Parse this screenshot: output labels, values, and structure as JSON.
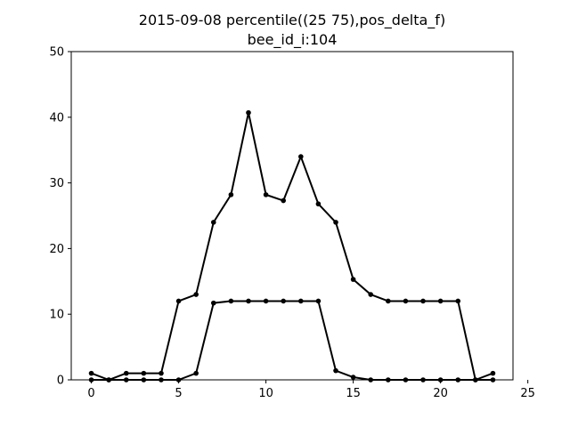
{
  "chart_data": {
    "type": "line",
    "title": "2015-09-08 percentile((25 75),pos_delta_f)",
    "subtitle": "bee_id_i:104",
    "xlabel": "",
    "ylabel": "",
    "xlim": [
      -1.15,
      24.15
    ],
    "ylim": [
      0,
      50
    ],
    "x_ticks": [
      0,
      5,
      10,
      15,
      20,
      25
    ],
    "y_ticks": [
      0,
      10,
      20,
      30,
      40,
      50
    ],
    "grid": false,
    "legend": "none",
    "x": [
      0,
      1,
      2,
      3,
      4,
      5,
      6,
      7,
      8,
      9,
      10,
      11,
      12,
      13,
      14,
      15,
      16,
      17,
      18,
      19,
      20,
      21,
      22,
      23
    ],
    "series": [
      {
        "values": [
          1,
          0,
          1,
          1,
          1,
          12,
          13,
          24,
          28.2,
          40.7,
          28.2,
          27.3,
          34,
          26.8,
          24,
          15.3,
          13,
          12,
          12,
          12,
          12,
          12,
          0,
          1
        ],
        "color": "#000000"
      },
      {
        "values": [
          0,
          0,
          0,
          0,
          0,
          0,
          1,
          11.7,
          12,
          12,
          12,
          12,
          12,
          12,
          1.4,
          0.4,
          0,
          0,
          0,
          0,
          0,
          0,
          0,
          0
        ],
        "color": "#000000"
      }
    ]
  }
}
